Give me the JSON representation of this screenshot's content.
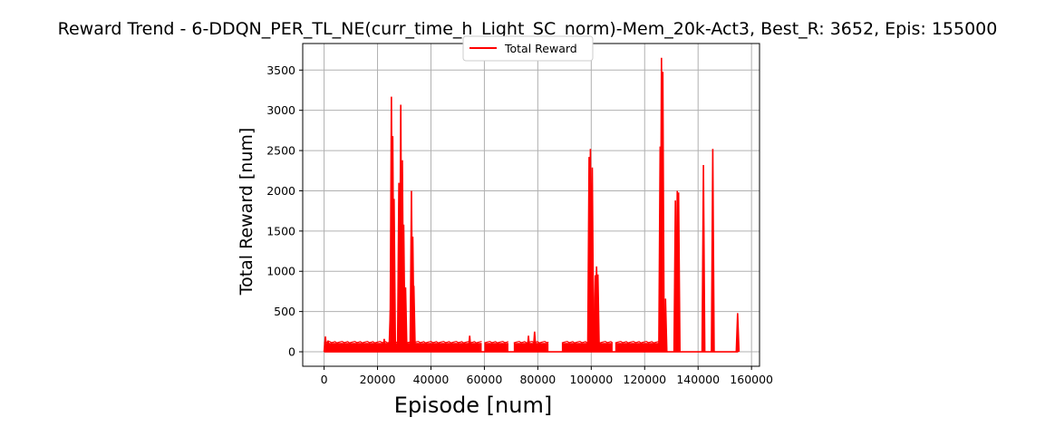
{
  "chart_data": {
    "type": "line",
    "title": "Reward Trend - 6-DDQN_PER_TL_NE(curr_time_h_Light_SC_norm)-Mem_20k-Act3, Best_R: 3652, Epis: 155000",
    "xlabel": "Episode [num]",
    "ylabel": "Total Reward [num]",
    "xlim": [
      -8000,
      163000
    ],
    "ylim": [
      -180,
      3830
    ],
    "xticks": [
      0,
      20000,
      40000,
      60000,
      80000,
      100000,
      120000,
      140000,
      160000
    ],
    "xtick_labels": [
      "0",
      "20000",
      "40000",
      "60000",
      "80000",
      "100000",
      "120000",
      "140000",
      "160000"
    ],
    "yticks": [
      0,
      500,
      1000,
      1500,
      2000,
      2500,
      3000,
      3500
    ],
    "ytick_labels": [
      "0",
      "500",
      "1000",
      "1500",
      "2000",
      "2500",
      "3000",
      "3500"
    ],
    "grid": true,
    "legend_position": "top-center",
    "series": [
      {
        "name": "Total Reward",
        "color": "#ff0000",
        "baseline_segments": [
          {
            "start": 0,
            "end": 59000,
            "level": 110
          },
          {
            "start": 60000,
            "end": 69000,
            "level": 110
          },
          {
            "start": 71000,
            "end": 84000,
            "level": 110
          },
          {
            "start": 89000,
            "end": 108000,
            "level": 110
          },
          {
            "start": 109000,
            "end": 127500,
            "level": 110
          }
        ],
        "peaks": [
          {
            "x": 500,
            "y": 190
          },
          {
            "x": 1500,
            "y": 140
          },
          {
            "x": 22500,
            "y": 160
          },
          {
            "x": 24800,
            "y": 520
          },
          {
            "x": 25200,
            "y": 3170
          },
          {
            "x": 25700,
            "y": 2680
          },
          {
            "x": 26200,
            "y": 1900
          },
          {
            "x": 28000,
            "y": 2100
          },
          {
            "x": 28700,
            "y": 3070
          },
          {
            "x": 29300,
            "y": 2380
          },
          {
            "x": 29800,
            "y": 1580
          },
          {
            "x": 30500,
            "y": 800
          },
          {
            "x": 32700,
            "y": 2000
          },
          {
            "x": 33200,
            "y": 1430
          },
          {
            "x": 33600,
            "y": 820
          },
          {
            "x": 54500,
            "y": 200
          },
          {
            "x": 76500,
            "y": 200
          },
          {
            "x": 78800,
            "y": 250
          },
          {
            "x": 99200,
            "y": 2420
          },
          {
            "x": 99700,
            "y": 2520
          },
          {
            "x": 100400,
            "y": 2290
          },
          {
            "x": 101500,
            "y": 950
          },
          {
            "x": 102000,
            "y": 1060
          },
          {
            "x": 102500,
            "y": 960
          },
          {
            "x": 125800,
            "y": 2550
          },
          {
            "x": 126300,
            "y": 3652
          },
          {
            "x": 126800,
            "y": 3480
          },
          {
            "x": 127800,
            "y": 660
          },
          {
            "x": 131500,
            "y": 1880
          },
          {
            "x": 132200,
            "y": 2000
          },
          {
            "x": 132700,
            "y": 1980
          },
          {
            "x": 142000,
            "y": 2320
          },
          {
            "x": 145500,
            "y": 2520
          },
          {
            "x": 154800,
            "y": 480
          }
        ],
        "zero_range": [
          0,
          155000
        ]
      }
    ]
  }
}
